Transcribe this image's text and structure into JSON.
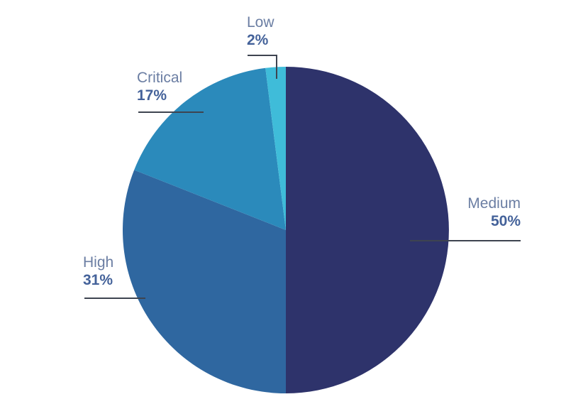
{
  "chart_data": {
    "type": "pie",
    "title": "",
    "unit": "%",
    "start_angle_deg": 0,
    "direction": "clockwise",
    "legend": "none",
    "background_color": "#FFFFFF",
    "leader_line_color": "#3E4450",
    "label_style": {
      "name_color": "#6B7EA3",
      "value_color": "#44629A"
    },
    "slices": [
      {
        "label": "Medium",
        "value": 50,
        "percent_label": "50%",
        "color": "#2E336B"
      },
      {
        "label": "High",
        "value": 31,
        "percent_label": "31%",
        "color": "#2F67A0"
      },
      {
        "label": "Critical",
        "value": 17,
        "percent_label": "17%",
        "color": "#2B8ABB"
      },
      {
        "label": "Low",
        "value": 2,
        "percent_label": "2%",
        "color": "#3FBCD9"
      }
    ]
  }
}
